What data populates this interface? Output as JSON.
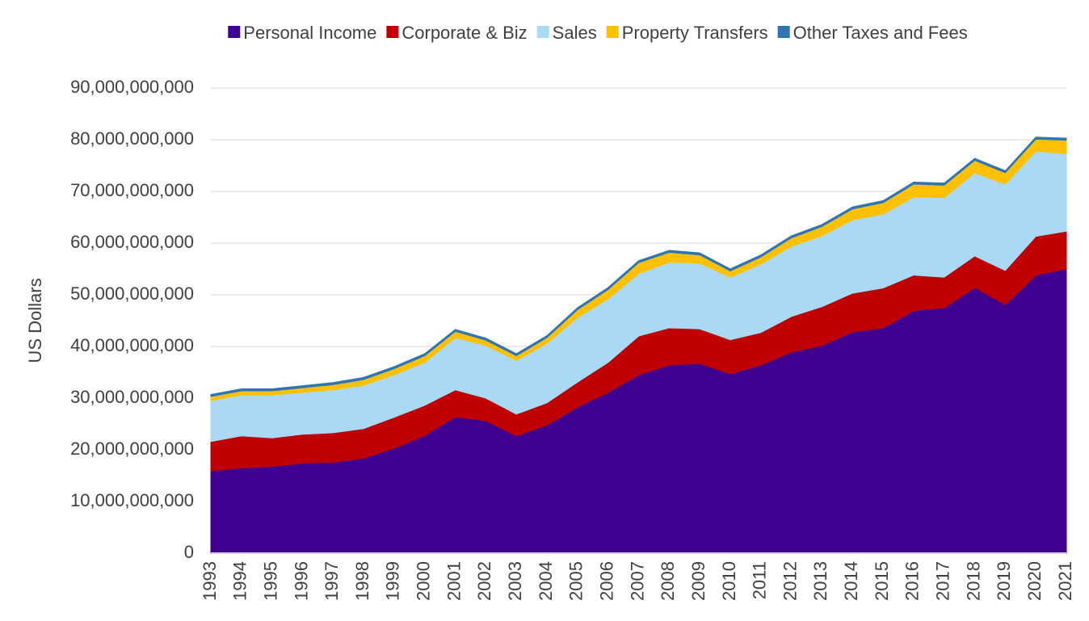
{
  "chart_data": {
    "type": "stacked_area",
    "y_axis_label": "US Dollars",
    "categories": [
      "1993",
      "1994",
      "1995",
      "1996",
      "1997",
      "1998",
      "1999",
      "2000",
      "2001",
      "2002",
      "2003",
      "2004",
      "2005",
      "2006",
      "2007",
      "2008",
      "2009",
      "2010",
      "2011",
      "2012",
      "2013",
      "2014",
      "2015",
      "2016",
      "2017",
      "2018",
      "2019",
      "2020",
      "2021"
    ],
    "series": [
      {
        "name": "Personal Income",
        "color": "#400090",
        "values": [
          15900000000,
          16500000000,
          16800000000,
          17400000000,
          17600000000,
          18400000000,
          20300000000,
          22800000000,
          26400000000,
          25600000000,
          22700000000,
          24800000000,
          28300000000,
          31100000000,
          34500000000,
          36400000000,
          36700000000,
          34700000000,
          36400000000,
          38900000000,
          40200000000,
          42800000000,
          43600000000,
          46900000000,
          47500000000,
          51400000000,
          48100000000,
          53800000000,
          55000000000
        ]
      },
      {
        "name": "Corporate & Biz",
        "color": "#c00000",
        "values": [
          5700000000,
          6200000000,
          5500000000,
          5600000000,
          5700000000,
          5700000000,
          6000000000,
          5800000000,
          5200000000,
          4400000000,
          4200000000,
          4300000000,
          4800000000,
          5800000000,
          7500000000,
          7200000000,
          6700000000,
          6600000000,
          6300000000,
          6900000000,
          7500000000,
          7500000000,
          7700000000,
          6900000000,
          5900000000,
          6100000000,
          6600000000,
          7500000000,
          7300000000
        ]
      },
      {
        "name": "Sales",
        "color": "#a9d9f5",
        "values": [
          7900000000,
          7900000000,
          8300000000,
          8100000000,
          8300000000,
          8400000000,
          8200000000,
          8300000000,
          10100000000,
          10200000000,
          10400000000,
          11500000000,
          12500000000,
          12300000000,
          12100000000,
          12700000000,
          12700000000,
          12100000000,
          13200000000,
          13600000000,
          13700000000,
          14200000000,
          14300000000,
          15100000000,
          15400000000,
          16100000000,
          16700000000,
          16500000000,
          15000000000
        ]
      },
      {
        "name": "Property Transfers",
        "color": "#ffc000",
        "values": [
          800000000,
          800000000,
          800000000,
          900000000,
          1000000000,
          1100000000,
          1200000000,
          1300000000,
          1200000000,
          1000000000,
          900000000,
          1100000000,
          1500000000,
          1800000000,
          2100000000,
          1900000000,
          1600000000,
          1200000000,
          1400000000,
          1600000000,
          1800000000,
          2100000000,
          2200000000,
          2500000000,
          2400000000,
          2400000000,
          2200000000,
          2300000000,
          2600000000
        ]
      },
      {
        "name": "Other Taxes and Fees",
        "color": "#2e75b6",
        "values": [
          400000000,
          400000000,
          400000000,
          400000000,
          400000000,
          400000000,
          400000000,
          400000000,
          400000000,
          400000000,
          400000000,
          400000000,
          400000000,
          400000000,
          400000000,
          400000000,
          400000000,
          400000000,
          400000000,
          400000000,
          400000000,
          400000000,
          400000000,
          400000000,
          400000000,
          400000000,
          400000000,
          400000000,
          400000000
        ]
      }
    ],
    "ylim": [
      0,
      90000000000
    ],
    "yticks": [
      0,
      {
        "value": 10000000000,
        "label": "10,000,000,000"
      },
      {
        "value": 20000000000,
        "label": "20,000,000,000"
      },
      {
        "value": 30000000000,
        "label": "30,000,000,000"
      },
      {
        "value": 40000000000,
        "label": "40,000,000,000"
      },
      {
        "value": 50000000000,
        "label": "50,000,000,000"
      },
      {
        "value": 60000000000,
        "label": "60,000,000,000"
      },
      {
        "value": 70000000000,
        "label": "70,000,000,000"
      },
      {
        "value": 80000000000,
        "label": "80,000,000,000"
      },
      {
        "value": 90000000000,
        "label": "90,000,000,000"
      }
    ],
    "grid": true,
    "legend": "top"
  }
}
